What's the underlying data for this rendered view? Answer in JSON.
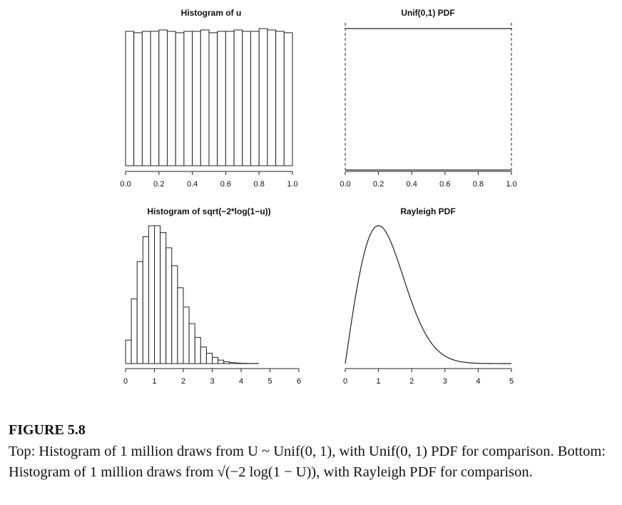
{
  "figure": {
    "label": "FIGURE 5.8",
    "caption": "Top: Histogram of 1 million draws from U ~ Unif(0, 1), with Unif(0, 1) PDF for comparison. Bottom: Histogram of 1 million draws from √(−2 log(1 − U)), with Rayleigh PDF for comparison."
  },
  "chart_data": [
    {
      "type": "bar",
      "title": "Histogram of u",
      "xlabel": "",
      "ylabel": "",
      "bin_edges": [
        0.0,
        0.05,
        0.1,
        0.15,
        0.2,
        0.25,
        0.3,
        0.35,
        0.4,
        0.45,
        0.5,
        0.55,
        0.6,
        0.65,
        0.7,
        0.75,
        0.8,
        0.85,
        0.9,
        0.95,
        1.0
      ],
      "values": [
        0.97,
        0.96,
        0.97,
        0.97,
        0.98,
        0.97,
        0.96,
        0.97,
        0.97,
        0.98,
        0.96,
        0.97,
        0.97,
        0.98,
        0.97,
        0.97,
        0.99,
        0.98,
        0.97,
        0.96
      ],
      "xticks": [
        "0.0",
        "0.2",
        "0.4",
        "0.6",
        "0.8",
        "1.0"
      ],
      "xlim": [
        0,
        1
      ],
      "grid": false
    },
    {
      "type": "line",
      "title": "Unif(0,1) PDF",
      "xlabel": "",
      "ylabel": "",
      "x": [
        0,
        1
      ],
      "y": [
        1,
        1
      ],
      "vertical_dashed_at": [
        0,
        1
      ],
      "xticks": [
        "0.0",
        "0.2",
        "0.4",
        "0.6",
        "0.8",
        "1.0"
      ],
      "xlim": [
        0,
        1
      ],
      "grid": false
    },
    {
      "type": "bar",
      "title": "Histogram of sqrt(−2*log(1−u))",
      "xlabel": "",
      "ylabel": "",
      "bin_width": 0.2,
      "bin_edges": [
        0,
        0.2,
        0.4,
        0.6,
        0.8,
        1.0,
        1.2,
        1.4,
        1.6,
        1.8,
        2.0,
        2.2,
        2.4,
        2.6,
        2.8,
        3.0,
        3.2,
        3.4,
        3.6,
        3.8,
        4.0,
        4.2,
        4.4,
        4.6,
        4.8,
        5.0,
        5.2,
        5.4,
        5.6,
        5.8
      ],
      "values": [
        0.17,
        0.47,
        0.74,
        0.92,
        1.0,
        1.0,
        0.95,
        0.84,
        0.71,
        0.55,
        0.41,
        0.29,
        0.19,
        0.12,
        0.075,
        0.045,
        0.025,
        0.013,
        0.007,
        0.004,
        0.002,
        0.001,
        0.001,
        0.0,
        0.0,
        0.0,
        0.0,
        0.0,
        0.0
      ],
      "xticks": [
        "0",
        "1",
        "2",
        "3",
        "4",
        "5",
        "6"
      ],
      "xlim": [
        0,
        6
      ],
      "grid": false
    },
    {
      "type": "line",
      "title": "Rayleigh PDF",
      "xlabel": "",
      "ylabel": "",
      "function": "x*exp(-x^2/2)",
      "x_range": [
        0,
        5
      ],
      "xticks": [
        "0",
        "1",
        "2",
        "3",
        "4",
        "5"
      ],
      "xlim": [
        0,
        5
      ],
      "grid": false
    }
  ]
}
